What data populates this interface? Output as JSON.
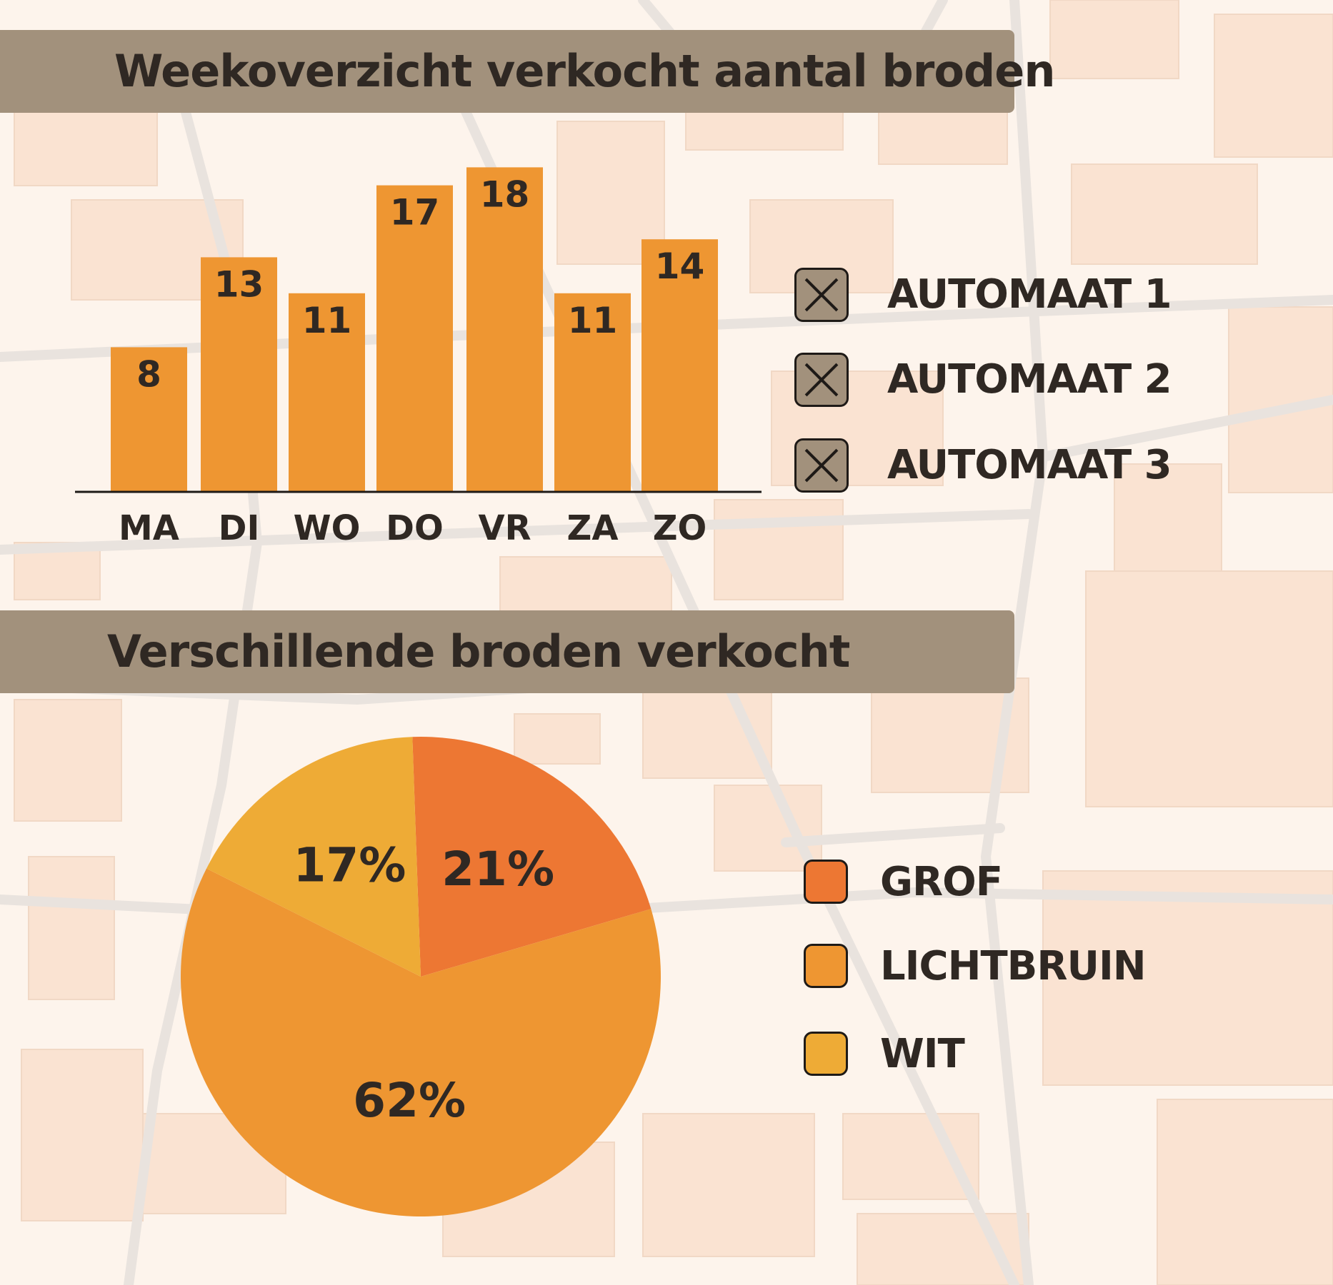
{
  "bar_section": {
    "title": "Weekoverzicht verkocht aantal broden"
  },
  "pie_section": {
    "title": "Verschillende broden verkocht"
  },
  "bar_legend": [
    "AUTOMAAT 1",
    "AUTOMAAT 2",
    "AUTOMAAT 3"
  ],
  "pie_legend": [
    "GROF",
    "LICHTBRUIN",
    "WIT"
  ],
  "colors": {
    "bar": "#ee9632",
    "grof": "#ed7733",
    "lichtbruin": "#ee9632",
    "wit": "#eeab36",
    "banner": "#a2917c",
    "text": "#2f2823"
  },
  "chart_data": [
    {
      "type": "bar",
      "title": "Weekoverzicht verkocht aantal broden",
      "categories": [
        "MA",
        "DI",
        "WO",
        "DO",
        "VR",
        "ZA",
        "ZO"
      ],
      "values": [
        8,
        13,
        11,
        17,
        18,
        11,
        14
      ],
      "data_labels": [
        "8",
        "13",
        "11",
        "17",
        "18",
        "11",
        "14"
      ],
      "legend": [
        "AUTOMAAT 1",
        "AUTOMAAT 2",
        "AUTOMAAT 3"
      ],
      "legend_placement": "right",
      "grid": false
    },
    {
      "type": "pie",
      "title": "Verschillende broden verkocht",
      "categories": [
        "GROF",
        "LICHTBRUIN",
        "WIT"
      ],
      "values": [
        21,
        62,
        17
      ],
      "data_labels": [
        "21%",
        "62%",
        "17%"
      ],
      "legend_placement": "right"
    }
  ]
}
